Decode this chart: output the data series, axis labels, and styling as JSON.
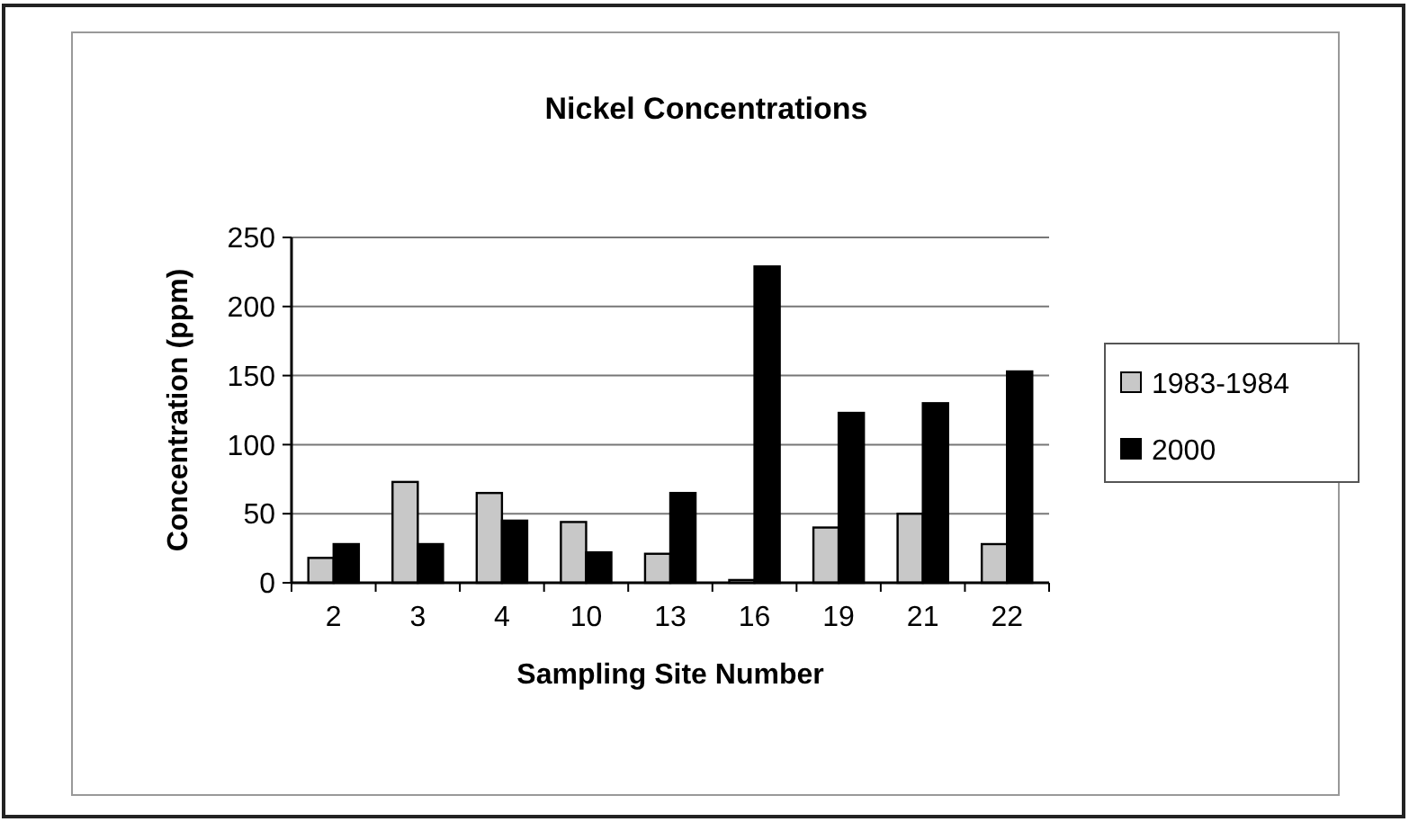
{
  "chart_data": {
    "type": "bar",
    "title": "Nickel Concentrations",
    "xlabel": "Sampling Site Number",
    "ylabel": "Concentration (ppm)",
    "categories": [
      "2",
      "3",
      "4",
      "10",
      "13",
      "16",
      "19",
      "21",
      "22"
    ],
    "series": [
      {
        "name": "1983-1984",
        "color": "#c8c8c8",
        "values": [
          18,
          73,
          65,
          44,
          21,
          2,
          40,
          50,
          28
        ]
      },
      {
        "name": "2000",
        "color": "#000000",
        "values": [
          28,
          28,
          45,
          22,
          65,
          229,
          123,
          130,
          153
        ]
      }
    ],
    "ylim": [
      0,
      250
    ],
    "yticks": [
      0,
      50,
      100,
      150,
      200,
      250
    ],
    "grid": "y",
    "legend": "right"
  }
}
